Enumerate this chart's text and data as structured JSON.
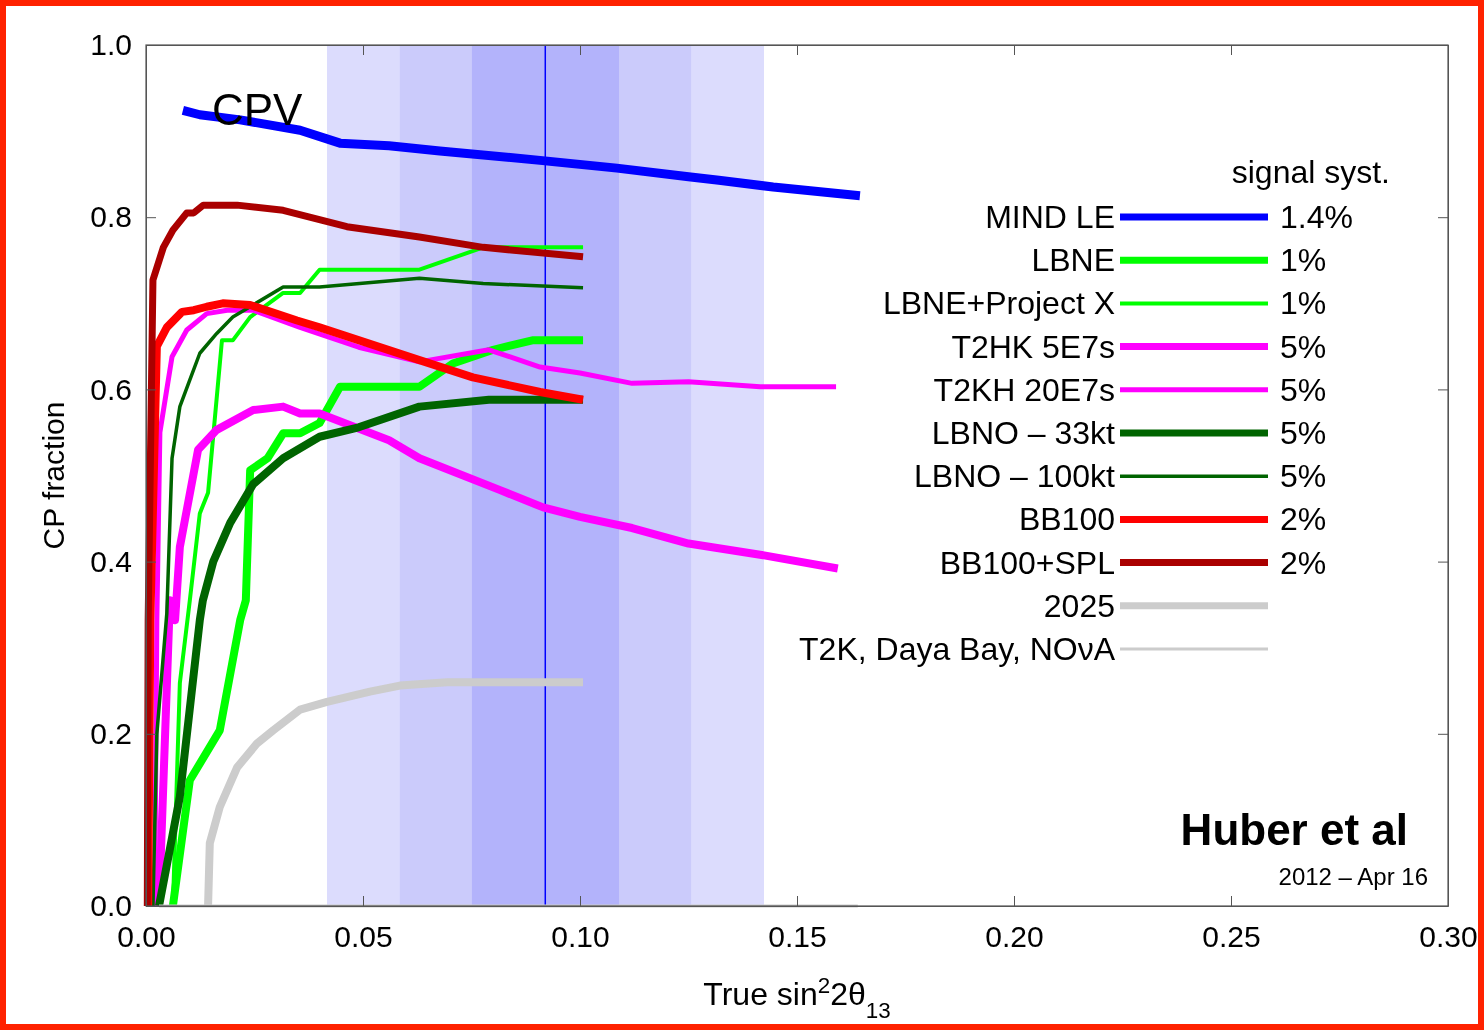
{
  "chart_data": {
    "type": "line",
    "xlabel": "True sin$^{2}$2θ$_{13}$",
    "ylabel": "CP fraction",
    "legend_title": "signal syst.",
    "legend": "top right",
    "xlim": [
      0,
      0.3
    ],
    "ylim": [
      0,
      1
    ],
    "xticks": [
      {
        "value": 0,
        "label": "0.00"
      },
      {
        "value": 0.05,
        "label": "0.05"
      },
      {
        "value": 0.1,
        "label": "0.10"
      },
      {
        "value": 0.15,
        "label": "0.15"
      },
      {
        "value": 0.2,
        "label": "0.20"
      },
      {
        "value": 0.25,
        "label": "0.25"
      },
      {
        "value": 0.3,
        "label": "0.30"
      }
    ],
    "yticks": [
      {
        "value": 0,
        "label": "0.0"
      },
      {
        "value": 0.2,
        "label": "0.2"
      },
      {
        "value": 0.4,
        "label": "0.4"
      },
      {
        "value": 0.6,
        "label": "0.6"
      },
      {
        "value": 0.8,
        "label": "0.8"
      },
      {
        "value": 1,
        "label": "1.0"
      }
    ],
    "grid": false,
    "line_style": "solid",
    "marker": "none",
    "bands": [
      {
        "axis": "x",
        "from": 0.0417,
        "to": 0.1424,
        "color": "#dcdcfd"
      },
      {
        "axis": "x",
        "from": 0.0585,
        "to": 0.1256,
        "color": "#cbcbfb"
      },
      {
        "axis": "x",
        "from": 0.0751,
        "to": 0.109,
        "color": "#b3b3fb"
      }
    ],
    "ref_lines": [
      {
        "axis": "x",
        "value": 0.092,
        "color": "#0000ff"
      }
    ],
    "annotations": [
      "CPV",
      "Huber et al",
      "2012 – Apr 16",
      "1.4%",
      "1%",
      "1%",
      "5%",
      "5%",
      "5%",
      "5%",
      "2%",
      "2%"
    ],
    "series": [
      {
        "name": "MIND LE",
        "color": "#0000ff",
        "x": [
          0.0085,
          0.0124,
          0.0217,
          0.0355,
          0.0447,
          0.056,
          0.0677,
          0.0908,
          0.1085,
          0.125,
          0.132,
          0.1445,
          0.1645
        ],
        "values": [
          0.924,
          0.919,
          0.913,
          0.901,
          0.886,
          0.883,
          0.877,
          0.866,
          0.857,
          0.847,
          0.843,
          0.835,
          0.825
        ]
      },
      {
        "name": "LBNE",
        "color": "#00ff00",
        "x": [
          0.0062,
          0.0101,
          0.017,
          0.0217,
          0.023,
          0.024,
          0.028,
          0.0316,
          0.0355,
          0.04,
          0.0447,
          0.063,
          0.0707,
          0.08,
          0.089,
          0.1007
        ],
        "values": [
          0,
          0.146,
          0.204,
          0.332,
          0.355,
          0.506,
          0.52,
          0.549,
          0.549,
          0.561,
          0.603,
          0.603,
          0.63,
          0.646,
          0.657,
          0.657
        ]
      },
      {
        "name": "LBNE+Project X",
        "color": "#00ff00",
        "x": [
          0.0062,
          0.0078,
          0.0101,
          0.0124,
          0.0143,
          0.0175,
          0.02,
          0.024,
          0.0316,
          0.0355,
          0.04,
          0.063,
          0.0777,
          0.1007
        ],
        "values": [
          0,
          0.259,
          0.355,
          0.456,
          0.48,
          0.657,
          0.657,
          0.684,
          0.712,
          0.712,
          0.739,
          0.739,
          0.765,
          0.765
        ]
      },
      {
        "name": "T2HK 5E7s",
        "color": "#ff00ff",
        "x": [
          0.003,
          0.0055,
          0.0067,
          0.0078,
          0.012,
          0.0163,
          0.0247,
          0.0316,
          0.0355,
          0.04,
          0.056,
          0.063,
          0.0816,
          0.0915,
          0.1,
          0.112,
          0.125,
          0.1415,
          0.1594
        ],
        "values": [
          0,
          0.355,
          0.332,
          0.417,
          0.53,
          0.553,
          0.576,
          0.58,
          0.572,
          0.572,
          0.541,
          0.52,
          0.483,
          0.463,
          0.452,
          0.439,
          0.421,
          0.408,
          0.392
        ]
      },
      {
        "name": "T2KH 20E7s",
        "color": "#ff00ff",
        "x": [
          0.002,
          0.0025,
          0.0032,
          0.006,
          0.0094,
          0.014,
          0.0187,
          0.0247,
          0.0355,
          0.049,
          0.063,
          0.079,
          0.0908,
          0.1,
          0.112,
          0.125,
          0.1415,
          0.159
        ],
        "values": [
          0,
          0.332,
          0.55,
          0.638,
          0.669,
          0.688,
          0.692,
          0.692,
          0.672,
          0.649,
          0.632,
          0.646,
          0.626,
          0.619,
          0.607,
          0.609,
          0.603,
          0.603
        ]
      },
      {
        "name": "LBNO – 33kt",
        "color": "#006400",
        "x": [
          0.003,
          0.0078,
          0.0124,
          0.0131,
          0.0155,
          0.0194,
          0.0247,
          0.0316,
          0.04,
          0.049,
          0.063,
          0.079,
          0.1007
        ],
        "values": [
          0,
          0.127,
          0.332,
          0.355,
          0.4,
          0.445,
          0.49,
          0.52,
          0.545,
          0.556,
          0.58,
          0.588,
          0.588
        ]
      },
      {
        "name": "LBNO – 100kt",
        "color": "#006400",
        "x": [
          0.0016,
          0.0025,
          0.0048,
          0.006,
          0.0078,
          0.0101,
          0.0124,
          0.0163,
          0.02,
          0.0316,
          0.04,
          0.063,
          0.0777,
          0.1007
        ],
        "values": [
          0,
          0.2,
          0.34,
          0.52,
          0.58,
          0.611,
          0.642,
          0.665,
          0.684,
          0.719,
          0.719,
          0.729,
          0.723,
          0.718
        ]
      },
      {
        "name": "BB100",
        "color": "#ff0000",
        "x": [
          0.0005,
          0.001,
          0.0025,
          0.0048,
          0.0083,
          0.011,
          0.014,
          0.0177,
          0.024,
          0.0348,
          0.04,
          0.063,
          0.0753,
          0.0908,
          0.1007
        ],
        "values": [
          0,
          0.332,
          0.65,
          0.672,
          0.69,
          0.692,
          0.696,
          0.7,
          0.698,
          0.68,
          0.672,
          0.634,
          0.614,
          0.597,
          0.588
        ]
      },
      {
        "name": "BB100+SPL",
        "color": "#aa0000",
        "x": [
          0.0003,
          0.0005,
          0.0016,
          0.004,
          0.0062,
          0.0094,
          0.011,
          0.0132,
          0.021,
          0.0316,
          0.0463,
          0.063,
          0.0777,
          0.1007
        ],
        "values": [
          0,
          0.332,
          0.727,
          0.765,
          0.785,
          0.805,
          0.805,
          0.814,
          0.814,
          0.808,
          0.789,
          0.777,
          0.765,
          0.754
        ]
      },
      {
        "name": "2025",
        "color": "#cccccc",
        "x": [
          0.0143,
          0.0147,
          0.017,
          0.021,
          0.0256,
          0.0293,
          0.0355,
          0.0417,
          0.0516,
          0.0585,
          0.0694,
          0.1007
        ],
        "values": [
          0,
          0.073,
          0.115,
          0.161,
          0.189,
          0.204,
          0.228,
          0.237,
          0.249,
          0.256,
          0.26,
          0.26
        ]
      },
      {
        "name": "T2K, Daya Bay, NOνA",
        "color": "#cccccc",
        "x": [
          0.003,
          0.164
        ],
        "values": [
          0,
          0
        ]
      }
    ]
  }
}
